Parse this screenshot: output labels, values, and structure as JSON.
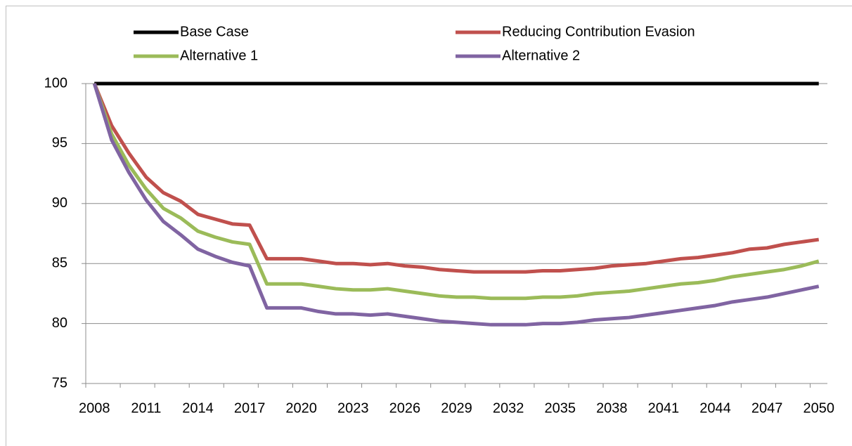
{
  "chart_data": {
    "type": "line",
    "categories": [
      2008,
      null,
      null,
      2011,
      null,
      null,
      2014,
      null,
      null,
      2017,
      null,
      null,
      2020,
      null,
      null,
      2023,
      null,
      null,
      2026,
      null,
      null,
      2029,
      null,
      null,
      2032,
      null,
      null,
      2035,
      null,
      null,
      2038,
      null,
      null,
      2041,
      null,
      null,
      2044,
      null,
      null,
      2047,
      null,
      null,
      2050
    ],
    "series": [
      {
        "name": "Base Case",
        "color": "#000000",
        "values": [
          100,
          100,
          100,
          100,
          100,
          100,
          100,
          100,
          100,
          100,
          100,
          100,
          100,
          100,
          100,
          100,
          100,
          100,
          100,
          100,
          100,
          100,
          100,
          100,
          100,
          100,
          100,
          100,
          100,
          100,
          100,
          100,
          100,
          100,
          100,
          100,
          100,
          100,
          100,
          100,
          100,
          100,
          100
        ]
      },
      {
        "name": "Reducing Contribution Evasion",
        "color": "#c0504d",
        "values": [
          100,
          96.5,
          94.2,
          92.2,
          90.9,
          90.2,
          89.1,
          88.7,
          88.3,
          88.2,
          85.4,
          85.4,
          85.4,
          85.2,
          85.0,
          85.0,
          84.9,
          85.0,
          84.8,
          84.7,
          84.5,
          84.4,
          84.3,
          84.3,
          84.3,
          84.3,
          84.4,
          84.4,
          84.5,
          84.6,
          84.8,
          84.9,
          85.0,
          85.2,
          85.4,
          85.5,
          85.7,
          85.9,
          86.2,
          86.3,
          86.6,
          86.8,
          87.0
        ]
      },
      {
        "name": "Alternative 1",
        "color": "#9bbb59",
        "values": [
          100,
          95.8,
          93.2,
          91.2,
          89.6,
          88.8,
          87.7,
          87.2,
          86.8,
          86.6,
          83.3,
          83.3,
          83.3,
          83.1,
          82.9,
          82.8,
          82.8,
          82.9,
          82.7,
          82.5,
          82.3,
          82.2,
          82.2,
          82.1,
          82.1,
          82.1,
          82.2,
          82.2,
          82.3,
          82.5,
          82.6,
          82.7,
          82.9,
          83.1,
          83.3,
          83.4,
          83.6,
          83.9,
          84.1,
          84.3,
          84.5,
          84.8,
          85.2
        ]
      },
      {
        "name": "Alternative 2",
        "color": "#8064a2",
        "values": [
          100,
          95.3,
          92.6,
          90.3,
          88.5,
          87.4,
          86.2,
          85.6,
          85.1,
          84.8,
          81.3,
          81.3,
          81.3,
          81.0,
          80.8,
          80.8,
          80.7,
          80.8,
          80.6,
          80.4,
          80.2,
          80.1,
          80.0,
          79.9,
          79.9,
          79.9,
          80.0,
          80.0,
          80.1,
          80.3,
          80.4,
          80.5,
          80.7,
          80.9,
          81.1,
          81.3,
          81.5,
          81.8,
          82.0,
          82.2,
          82.5,
          82.8,
          83.1
        ]
      }
    ],
    "ylim": [
      75,
      100
    ],
    "yticks": [
      75,
      80,
      85,
      90,
      95,
      100
    ],
    "grid": true,
    "legend": "top"
  }
}
